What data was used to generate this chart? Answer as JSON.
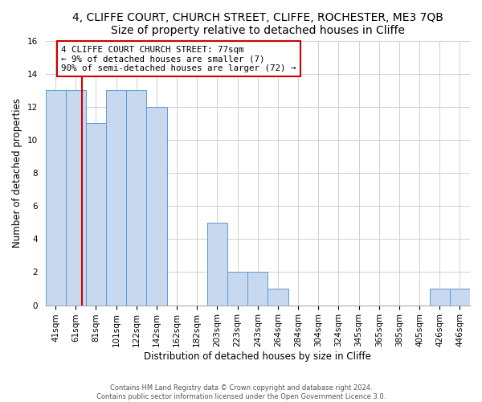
{
  "title": "4, CLIFFE COURT, CHURCH STREET, CLIFFE, ROCHESTER, ME3 7QB",
  "subtitle": "Size of property relative to detached houses in Cliffe",
  "xlabel": "Distribution of detached houses by size in Cliffe",
  "ylabel": "Number of detached properties",
  "bar_labels": [
    "41sqm",
    "61sqm",
    "81sqm",
    "101sqm",
    "122sqm",
    "142sqm",
    "162sqm",
    "182sqm",
    "203sqm",
    "223sqm",
    "243sqm",
    "264sqm",
    "284sqm",
    "304sqm",
    "324sqm",
    "345sqm",
    "365sqm",
    "385sqm",
    "405sqm",
    "426sqm",
    "446sqm"
  ],
  "bar_values": [
    13,
    13,
    11,
    13,
    13,
    12,
    0,
    0,
    5,
    2,
    2,
    1,
    0,
    0,
    0,
    0,
    0,
    0,
    0,
    1,
    1
  ],
  "bar_color": "#c8d9ef",
  "bar_edge_color": "#5b9bd5",
  "red_line_x": 1.3,
  "annotation_text": "4 CLIFFE COURT CHURCH STREET: 77sqm\n← 9% of detached houses are smaller (7)\n90% of semi-detached houses are larger (72) →",
  "annotation_box_color": "#ffffff",
  "annotation_box_edge": "#cc0000",
  "red_line_color": "#cc0000",
  "ylim": [
    0,
    16
  ],
  "yticks": [
    0,
    2,
    4,
    6,
    8,
    10,
    12,
    14,
    16
  ],
  "footer": "Contains HM Land Registry data © Crown copyright and database right 2024.\nContains public sector information licensed under the Open Government Licence 3.0.",
  "title_fontsize": 10,
  "axis_fontsize": 8.5,
  "tick_fontsize": 7.5
}
